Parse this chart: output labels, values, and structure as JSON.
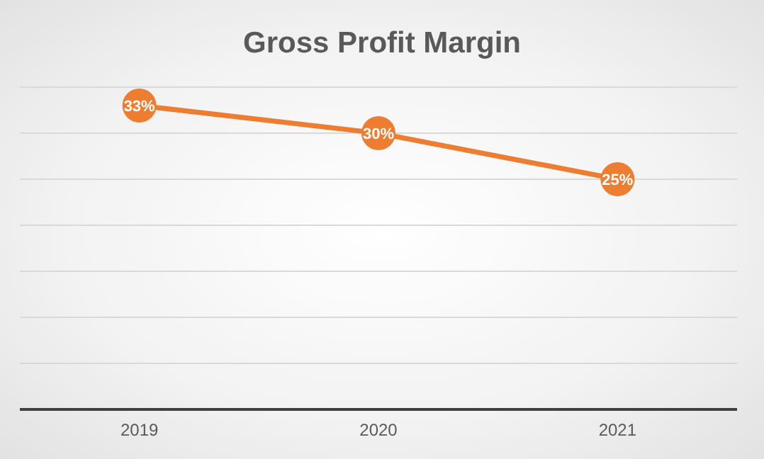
{
  "chart_data": {
    "type": "line",
    "title": "Gross Profit Margin",
    "categories": [
      "2019",
      "2020",
      "2021"
    ],
    "values": [
      33,
      30,
      25
    ],
    "value_labels": [
      "33%",
      "30%",
      "25%"
    ],
    "color": "#ed7d31",
    "ylim": [
      0,
      35
    ],
    "yticks": [
      {
        "value": 0,
        "label": null
      },
      {
        "value": 5,
        "label": null
      },
      {
        "value": 10,
        "label": null
      },
      {
        "value": 15,
        "label": null
      },
      {
        "value": 20,
        "label": null
      },
      {
        "value": 25,
        "label": null
      },
      {
        "value": 30,
        "label": null
      },
      {
        "value": 35,
        "label": null
      }
    ],
    "grid": "y",
    "tick_labels": "x",
    "marker": "circle",
    "line_style": "solid"
  }
}
